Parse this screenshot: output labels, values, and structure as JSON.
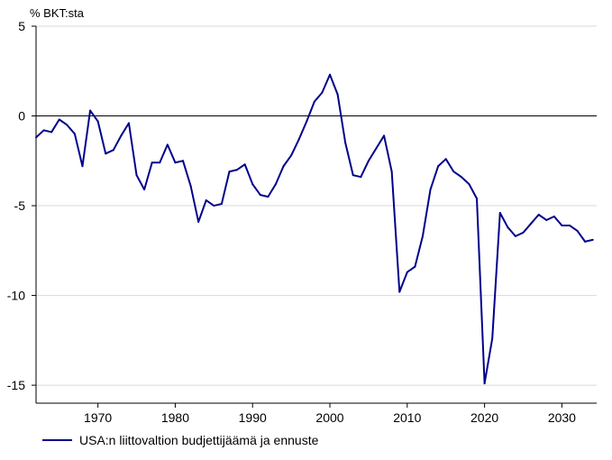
{
  "chart_data": {
    "type": "line",
    "y_unit_label": "% BKT:sta",
    "xlim": [
      1962,
      2034.5
    ],
    "ylim": [
      -16,
      5
    ],
    "x_ticks": [
      1970,
      1980,
      1990,
      2000,
      2010,
      2020,
      2030
    ],
    "y_ticks": [
      5,
      0,
      -5,
      -10,
      -15
    ],
    "grid": "horizontal",
    "zero_line": true,
    "legend_position": "bottom-left",
    "series": [
      {
        "name": "USA:n liittovaltion budjettijäämä ja ennuste",
        "color": "#00008b",
        "x": [
          1962,
          1963,
          1964,
          1965,
          1966,
          1967,
          1968,
          1969,
          1970,
          1971,
          1972,
          1973,
          1974,
          1975,
          1976,
          1977,
          1978,
          1979,
          1980,
          1981,
          1982,
          1983,
          1984,
          1985,
          1986,
          1987,
          1988,
          1989,
          1990,
          1991,
          1992,
          1993,
          1994,
          1995,
          1996,
          1997,
          1998,
          1999,
          2000,
          2001,
          2002,
          2003,
          2004,
          2005,
          2006,
          2007,
          2008,
          2009,
          2010,
          2011,
          2012,
          2013,
          2014,
          2015,
          2016,
          2017,
          2018,
          2019,
          2020,
          2021,
          2022,
          2023,
          2024,
          2025,
          2026,
          2027,
          2028,
          2029,
          2030,
          2031,
          2032,
          2033,
          2034
        ],
        "values": [
          -1.2,
          -0.8,
          -0.9,
          -0.2,
          -0.5,
          -1.0,
          -2.8,
          0.3,
          -0.3,
          -2.1,
          -1.9,
          -1.1,
          -0.4,
          -3.3,
          -4.1,
          -2.6,
          -2.6,
          -1.6,
          -2.6,
          -2.5,
          -3.9,
          -5.9,
          -4.7,
          -5.0,
          -4.9,
          -3.1,
          -3.0,
          -2.7,
          -3.8,
          -4.4,
          -4.5,
          -3.8,
          -2.8,
          -2.2,
          -1.3,
          -0.3,
          0.8,
          1.3,
          2.3,
          1.2,
          -1.5,
          -3.3,
          -3.4,
          -2.5,
          -1.8,
          -1.1,
          -3.1,
          -9.8,
          -8.7,
          -8.4,
          -6.7,
          -4.1,
          -2.8,
          -2.4,
          -3.1,
          -3.4,
          -3.8,
          -4.6,
          -14.9,
          -12.4,
          -5.4,
          -6.2,
          -6.7,
          -6.5,
          -6.0,
          -5.5,
          -5.8,
          -5.6,
          -6.1,
          -6.1,
          -6.4,
          -7.0,
          -6.9
        ]
      }
    ]
  }
}
